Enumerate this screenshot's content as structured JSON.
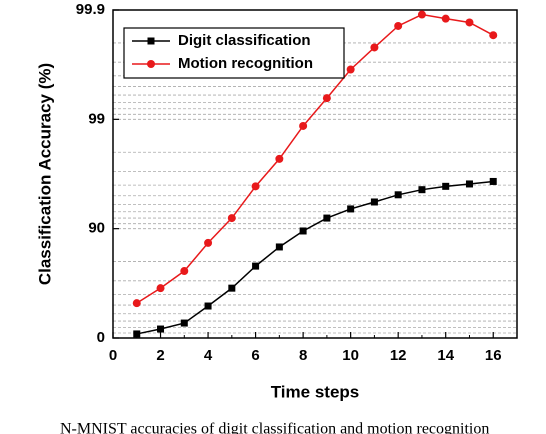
{
  "chart_data": {
    "type": "line",
    "x_label": "Time steps",
    "y_label": "Classification Accuracy (%)",
    "caption": "N-MNIST accuracies of digit classification and motion recognition",
    "x": [
      1,
      2,
      3,
      4,
      5,
      6,
      7,
      8,
      9,
      10,
      11,
      12,
      13,
      14,
      15,
      16
    ],
    "series": [
      {
        "name": "Digit classification",
        "color": "#000000",
        "marker": "square",
        "values": [
          8.2,
          17.2,
          27,
          49,
          65,
          78,
          85.3,
          89.5,
          92,
          93.4,
          94.3,
          95.1,
          95.6,
          95.9,
          96.1,
          96.3
        ]
      },
      {
        "name": "Motion recognition",
        "color": "#e8191b",
        "marker": "circle",
        "values": [
          52,
          65,
          75.6,
          86.5,
          92,
          95.9,
          97.7,
          98.85,
          99.36,
          99.65,
          99.78,
          99.86,
          99.89,
          99.88,
          99.87,
          99.83
        ]
      }
    ],
    "xlim": [
      0,
      17
    ],
    "xticks": [
      0,
      2,
      4,
      6,
      8,
      10,
      12,
      14,
      16
    ],
    "ylim": [
      0,
      99.9
    ],
    "yticks": [
      0,
      90,
      99,
      99.9
    ],
    "yscale": "log-complement",
    "grid": true,
    "legend": "upper-left"
  }
}
